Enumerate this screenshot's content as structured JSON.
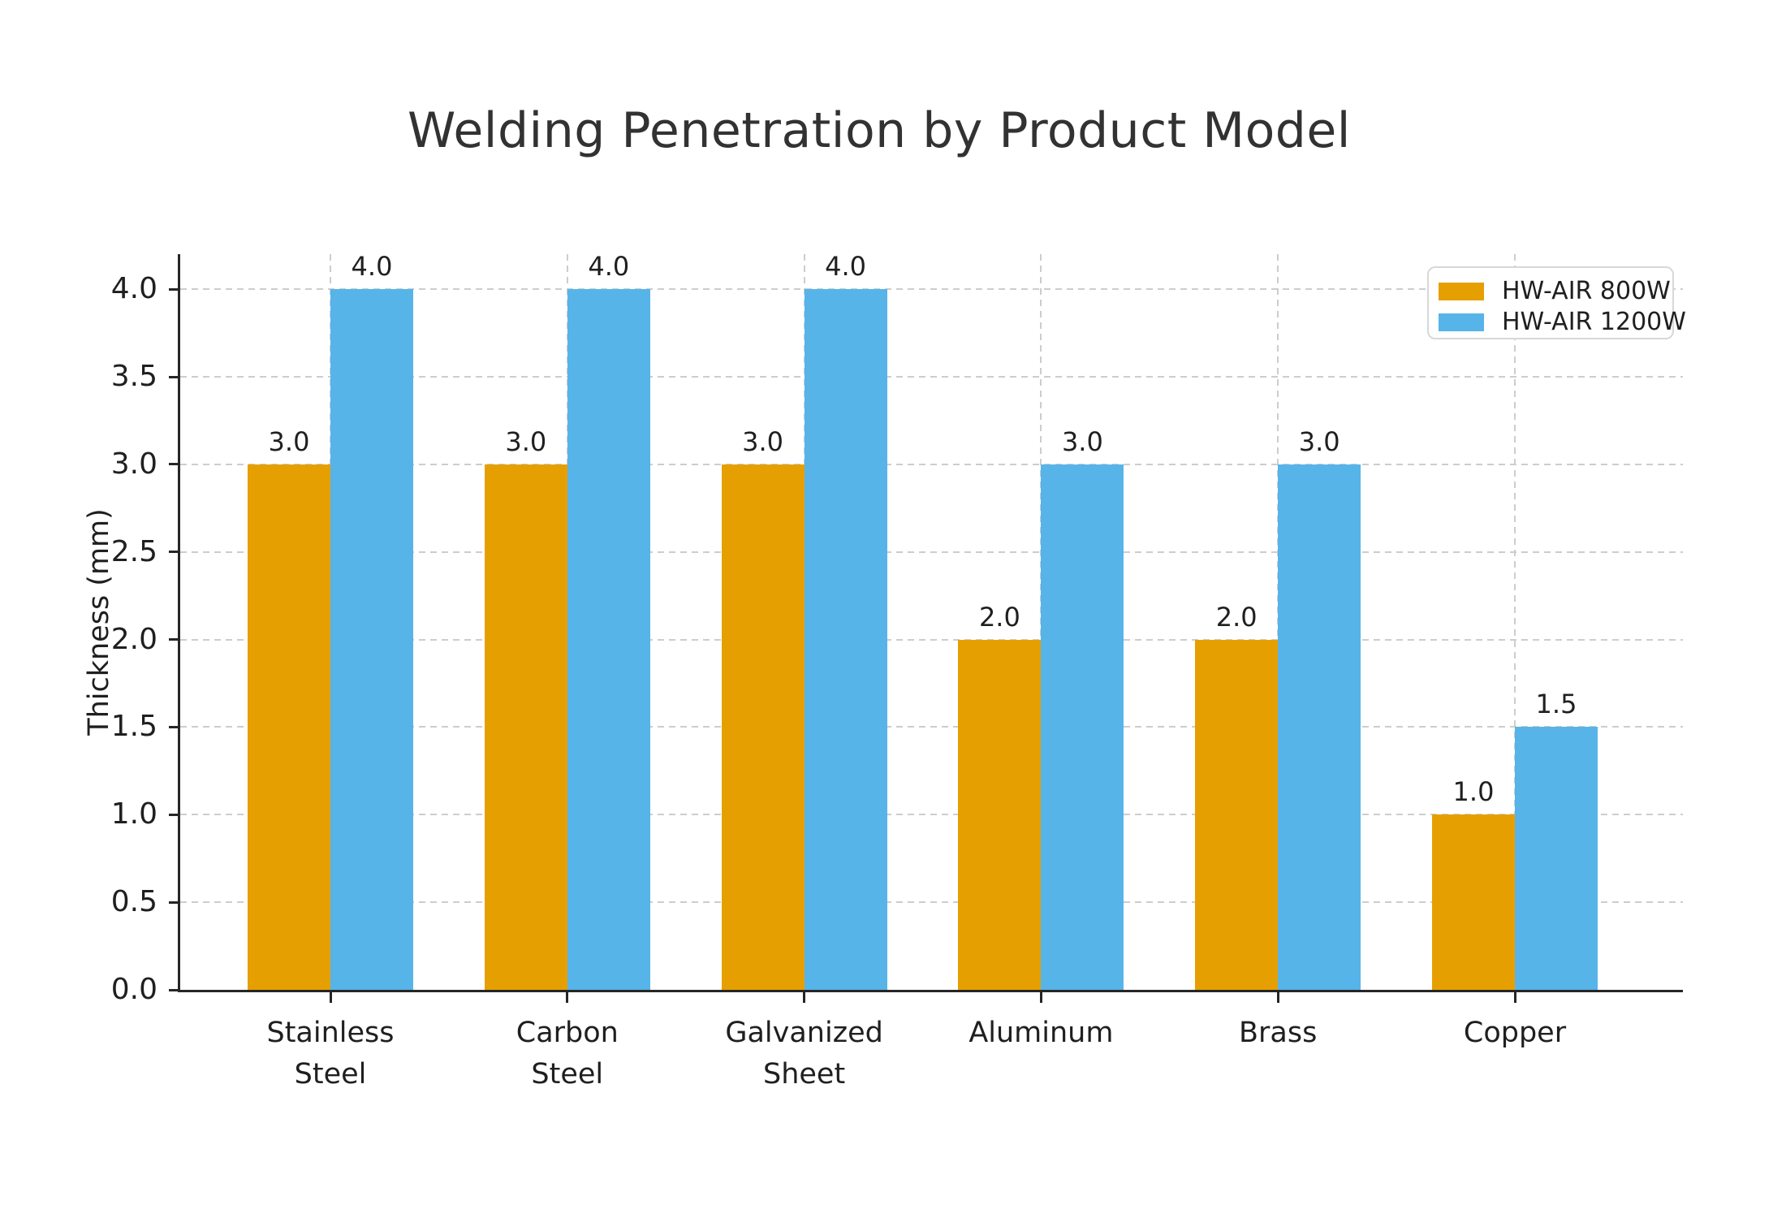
{
  "chart_data": {
    "type": "bar",
    "title": "Welding Penetration by Product Model",
    "ylabel": "Thickness (mm)",
    "xlabel": "",
    "categories": [
      "Stainless\nSteel",
      "Carbon\nSteel",
      "Galvanized\nSheet",
      "Aluminum",
      "Brass",
      "Copper"
    ],
    "series": [
      {
        "name": "HW-AIR 800W",
        "color": "#E69F00",
        "values": [
          3.0,
          3.0,
          3.0,
          2.0,
          2.0,
          1.0
        ]
      },
      {
        "name": "HW-AIR 1200W",
        "color": "#56B4E9",
        "values": [
          4.0,
          4.0,
          4.0,
          3.0,
          3.0,
          1.5
        ]
      }
    ],
    "value_label_format": "one_decimal",
    "ylim": [
      0,
      4.2
    ],
    "yticks": [
      0.0,
      0.5,
      1.0,
      1.5,
      2.0,
      2.5,
      3.0,
      3.5,
      4.0
    ],
    "grid": "dashed horizontal and vertical",
    "legend_position": "upper right",
    "colors": {
      "series_800w": "#E69F00",
      "series_1200w": "#56B4E9",
      "axis": "#262626",
      "grid": "#cdcdcd",
      "text": "#1f1f1f",
      "title": "#323232",
      "legend_border": "#d8d8d8",
      "background": "#ffffff"
    }
  }
}
